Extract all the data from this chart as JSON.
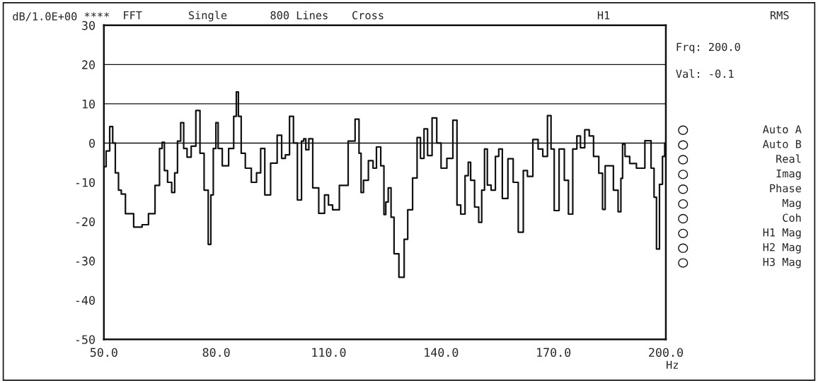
{
  "chart_data": {
    "type": "step",
    "ylabel": "dB/1.0E+00 ****",
    "xlabel": "Hz",
    "annotations": [
      "FFT",
      "Single",
      "800 Lines",
      "Cross",
      "H1",
      "RMS",
      "Frq: 200.0",
      "Val: -0.1",
      "Auto A",
      "Auto B",
      "Real",
      "Imag",
      "Phase",
      "Mag",
      "Coh",
      "H1 Mag",
      "H2 Mag",
      "H3 Mag"
    ],
    "series": [
      {
        "color": "#111111",
        "x": [
          50.2,
          51.0,
          52.1,
          52.6,
          53.5,
          54.3,
          55.0,
          56.5,
          59.4,
          61.0,
          62.8,
          64.5,
          65.2,
          65.9,
          66.4,
          67.6,
          68.6,
          69.2,
          70.1,
          70.9,
          71.7,
          72.7,
          73.9,
          75.2,
          76.1,
          77.4,
          78.3,
          78.8,
          79.6,
          80.2,
          80.8,
          82.4,
          84.2,
          85.1,
          85.6,
          86.2,
          87.1,
          88.4,
          90.3,
          91.2,
          92.5,
          93.4,
          95.6,
          96.9,
          98.0,
          98.9,
          100.2,
          101.0,
          102.3,
          103.2,
          103.5,
          104.3,
          105.1,
          106.4,
          108.3,
          109.5,
          110.4,
          111.7,
          114.0,
          116.4,
          117.7,
          118.5,
          118.8,
          119.8,
          121.4,
          122.3,
          123.2,
          124.6,
          124.9,
          125.6,
          126.2,
          127.1,
          127.8,
          129.7,
          130.6,
          131.6,
          133.2,
          134.0,
          135.0,
          135.9,
          136.9,
          138.3,
          139.4,
          140.6,
          142.5,
          143.8,
          144.7,
          145.8,
          147.0,
          147.5,
          148.3,
          149.6,
          150.5,
          151.2,
          152.0,
          152.7,
          154.0,
          155.0,
          155.8,
          156.9,
          158.8,
          159.7,
          161.5,
          162.4,
          163.7,
          165.3,
          166.5,
          167.8,
          169.0,
          169.7,
          170.7,
          172.3,
          173.5,
          174.5,
          175.8,
          176.7,
          177.7,
          179.0,
          180.1,
          181.3,
          182.9,
          183.3,
          184.3,
          185.2,
          186.8,
          187.7,
          188.3,
          188.6,
          189.6,
          191.1,
          193.2,
          195.6,
          196.5,
          197.2,
          197.8,
          198.8,
          199.4,
          200.0
        ],
        "values": [
          -6,
          -2,
          4.2,
          0,
          -7.6,
          -12,
          -13,
          -18,
          -21.4,
          -20.8,
          -18,
          -10.8,
          -1.4,
          0.2,
          -7,
          -10,
          -12.6,
          -7.6,
          0.5,
          5.2,
          -1.4,
          -3.6,
          -0.8,
          8.3,
          -2.6,
          -12,
          -25.8,
          -13.2,
          -1.4,
          5.2,
          -1.4,
          -5.8,
          -1.4,
          6.8,
          13,
          6.8,
          -2.6,
          -6.4,
          -10,
          -7.6,
          -1.4,
          -13.2,
          -5.1,
          2,
          -3.9,
          -3,
          6.8,
          0,
          -14.5,
          0.5,
          1.1,
          -1.7,
          1.1,
          -11.4,
          -17.9,
          -13.2,
          -15.8,
          -17,
          -10.8,
          0.5,
          6.1,
          -2.6,
          -12.6,
          -9.5,
          -4.5,
          -6.4,
          -1,
          -5.8,
          -18.2,
          -15,
          -11.4,
          -18.9,
          -28.2,
          -34.2,
          -24.5,
          -17,
          -8.9,
          1.4,
          -3.9,
          3.6,
          -3.2,
          6.4,
          0,
          -6.4,
          -3.9,
          5.8,
          -15.8,
          -18.1,
          -8.3,
          -4.9,
          -9.5,
          -16.3,
          -20.2,
          -12,
          -1.5,
          -10.7,
          -12,
          -3.4,
          -1.5,
          -14.1,
          -4,
          -10,
          -22.7,
          -7,
          -8.5,
          0.9,
          -1.5,
          -3.4,
          7,
          -1.5,
          -17.2,
          -1.5,
          -9.5,
          -18.1,
          -1.5,
          1.8,
          -1.2,
          3.4,
          1.8,
          -3.4,
          -7.7,
          -16.9,
          -5.8,
          -5.8,
          -12,
          -17.5,
          -9,
          -0.3,
          -3.4,
          -5.2,
          -6.4,
          0.6,
          -6.4,
          -13.8,
          -27,
          -10.5,
          -3.4,
          0
        ]
      }
    ],
    "xlim": [
      50,
      200
    ],
    "xticks": [
      {
        "value": 50,
        "label": "50.0"
      },
      {
        "value": 80,
        "label": "80.0"
      },
      {
        "value": 110,
        "label": "110.0"
      },
      {
        "value": 140,
        "label": "140.0"
      },
      {
        "value": 170,
        "label": "170.0"
      },
      {
        "value": 200,
        "label": "200.0"
      }
    ],
    "ylim": [
      -50,
      30
    ],
    "yticks": [
      -50,
      -40,
      -30,
      -20,
      -10,
      0,
      10,
      20,
      30
    ],
    "ref_lines": [
      {
        "axis": "y",
        "value": 20,
        "color": "#111111"
      },
      {
        "axis": "y",
        "value": 10,
        "color": "#111111"
      },
      {
        "axis": "y",
        "value": 0,
        "color": "#111111"
      }
    ],
    "grid": false,
    "legend": false
  }
}
